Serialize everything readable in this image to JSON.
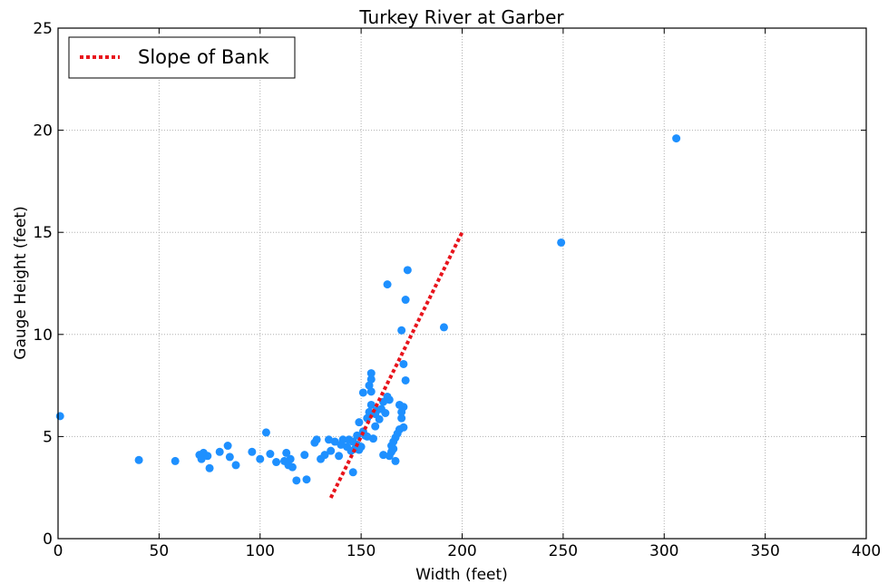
{
  "chart_data": {
    "type": "scatter",
    "title": "Turkey River at Garber",
    "xlabel": "Width (feet)",
    "ylabel": "Gauge Height (feet)",
    "xlim": [
      0,
      400
    ],
    "ylim": [
      0,
      25
    ],
    "xticks": [
      "0",
      "50",
      "100",
      "150",
      "200",
      "250",
      "300",
      "350",
      "400"
    ],
    "yticks": [
      "0",
      "5",
      "10",
      "15",
      "20",
      "25"
    ],
    "grid": true,
    "legend_position": "top-left",
    "colors": {
      "points": "#1e90ff",
      "line": "#e8141c"
    },
    "series": [
      {
        "type": "scatter",
        "points": [
          [
            1,
            6.0
          ],
          [
            40,
            3.85
          ],
          [
            58,
            3.8
          ],
          [
            70,
            4.1
          ],
          [
            71,
            3.9
          ],
          [
            72,
            4.2
          ],
          [
            74,
            4.05
          ],
          [
            75,
            3.45
          ],
          [
            80,
            4.25
          ],
          [
            84,
            4.55
          ],
          [
            85,
            4.0
          ],
          [
            88,
            3.6
          ],
          [
            96,
            4.25
          ],
          [
            100,
            3.9
          ],
          [
            103,
            5.2
          ],
          [
            105,
            4.15
          ],
          [
            108,
            3.75
          ],
          [
            112,
            3.8
          ],
          [
            113,
            4.2
          ],
          [
            114,
            3.6
          ],
          [
            115,
            3.9
          ],
          [
            116,
            3.5
          ],
          [
            118,
            2.85
          ],
          [
            122,
            4.1
          ],
          [
            123,
            2.9
          ],
          [
            127,
            4.7
          ],
          [
            128,
            4.85
          ],
          [
            130,
            3.9
          ],
          [
            132,
            4.1
          ],
          [
            134,
            4.85
          ],
          [
            135,
            4.3
          ],
          [
            137,
            4.75
          ],
          [
            139,
            4.05
          ],
          [
            140,
            4.6
          ],
          [
            141,
            4.85
          ],
          [
            143,
            4.5
          ],
          [
            144,
            4.85
          ],
          [
            145,
            4.3
          ],
          [
            146,
            4.75
          ],
          [
            146,
            3.25
          ],
          [
            147,
            4.4
          ],
          [
            148,
            5.05
          ],
          [
            148,
            4.6
          ],
          [
            149,
            5.7
          ],
          [
            149,
            4.35
          ],
          [
            150,
            4.5
          ],
          [
            151,
            7.15
          ],
          [
            151,
            5.25
          ],
          [
            152,
            5.05
          ],
          [
            153,
            5.9
          ],
          [
            153,
            5.0
          ],
          [
            154,
            6.2
          ],
          [
            154,
            7.5
          ],
          [
            155,
            7.2
          ],
          [
            155,
            7.8
          ],
          [
            155,
            8.1
          ],
          [
            155,
            6.55
          ],
          [
            156,
            4.9
          ],
          [
            157,
            5.5
          ],
          [
            157,
            6.1
          ],
          [
            158,
            6.3
          ],
          [
            159,
            5.85
          ],
          [
            160,
            6.35
          ],
          [
            161,
            6.7
          ],
          [
            161,
            4.1
          ],
          [
            162,
            6.15
          ],
          [
            163,
            12.45
          ],
          [
            163,
            6.95
          ],
          [
            164,
            6.8
          ],
          [
            164,
            4.05
          ],
          [
            165,
            4.25
          ],
          [
            165,
            4.55
          ],
          [
            166,
            4.4
          ],
          [
            166,
            4.75
          ],
          [
            167,
            4.95
          ],
          [
            167,
            3.8
          ],
          [
            168,
            5.15
          ],
          [
            169,
            5.35
          ],
          [
            169,
            6.55
          ],
          [
            170,
            10.2
          ],
          [
            170,
            5.9
          ],
          [
            170,
            6.2
          ],
          [
            171,
            5.45
          ],
          [
            171,
            8.55
          ],
          [
            171,
            6.45
          ],
          [
            172,
            7.75
          ],
          [
            172,
            11.7
          ],
          [
            173,
            13.15
          ],
          [
            191,
            10.35
          ],
          [
            249,
            14.5
          ],
          [
            306,
            19.6
          ]
        ]
      },
      {
        "type": "line",
        "name": "Slope of Bank",
        "style": "dotted",
        "points": [
          [
            135,
            2.0
          ],
          [
            200,
            15.0
          ]
        ]
      }
    ]
  }
}
